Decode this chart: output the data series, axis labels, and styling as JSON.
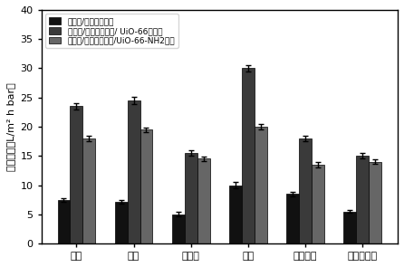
{
  "categories": [
    "甲醇",
    "乙醇",
    "巳丙醇",
    "丙酮",
    "乙酸乙酯",
    "甲基甲酰胺"
  ],
  "series": [
    {
      "label": "多巴胺/葡萄糖纳滤膜",
      "color": "#111111",
      "values": [
        7.5,
        7.2,
        5.0,
        10.0,
        8.5,
        5.5
      ],
      "errors": [
        0.3,
        0.3,
        0.4,
        0.5,
        0.4,
        0.3
      ]
    },
    {
      "label": "多巴胺/葡萄糖纳滤膜/ UiO-66纳滤膜",
      "color": "#3a3a3a",
      "values": [
        23.5,
        24.5,
        15.5,
        30.0,
        18.0,
        15.0
      ],
      "errors": [
        0.5,
        0.6,
        0.5,
        0.5,
        0.5,
        0.5
      ]
    },
    {
      "label": "多巴胺/葡萄糖纳滤膜/UiO-66-NH2滤膜",
      "color": "#666666",
      "values": [
        18.0,
        19.5,
        14.5,
        20.0,
        13.5,
        14.0
      ],
      "errors": [
        0.5,
        0.4,
        0.4,
        0.5,
        0.4,
        0.4
      ]
    }
  ],
  "ylabel": "渗透流量（L/m² h bar）",
  "ylim": [
    0,
    40
  ],
  "yticks": [
    0,
    5,
    10,
    15,
    20,
    25,
    30,
    35,
    40
  ],
  "background_color": "#ffffff",
  "bar_width": 0.22,
  "tick_fontsize": 8,
  "legend_fontsize": 6.5,
  "ylabel_fontsize": 8
}
